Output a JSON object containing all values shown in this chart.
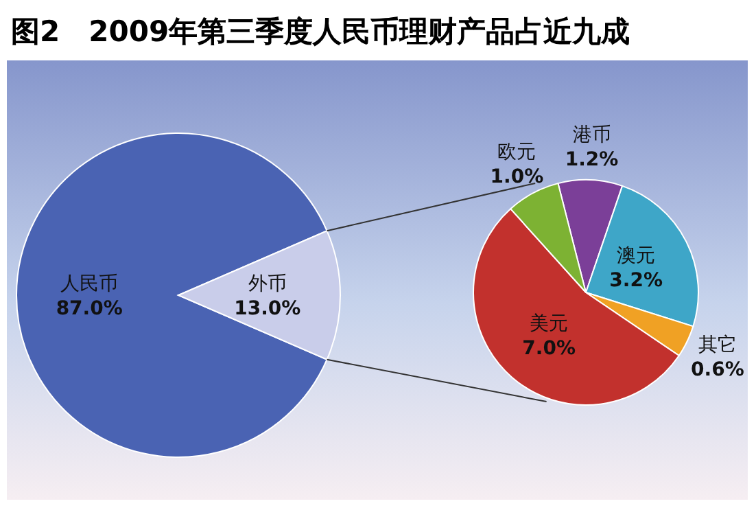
{
  "chart_data": [
    {
      "type": "pie",
      "title": "图2　2009年第三季度人民币理财产品占近九成",
      "categories": [
        "人民币",
        "外币"
      ],
      "values": [
        87.0,
        13.0
      ],
      "value_labels": [
        "87.0%",
        "13.0%"
      ],
      "colors": [
        "#4a63b3",
        "#c9cdea"
      ]
    },
    {
      "type": "pie",
      "categories": [
        "港币",
        "澳元",
        "其它",
        "美元",
        "欧元"
      ],
      "values": [
        1.2,
        3.2,
        0.6,
        7.0,
        1.0
      ],
      "value_labels": [
        "1.2%",
        "3.2%",
        "0.6%",
        "7.0%",
        "1.0%"
      ],
      "colors": [
        "#7b3f98",
        "#3ea6c8",
        "#f0a124",
        "#c2312d",
        "#7db233"
      ]
    }
  ]
}
